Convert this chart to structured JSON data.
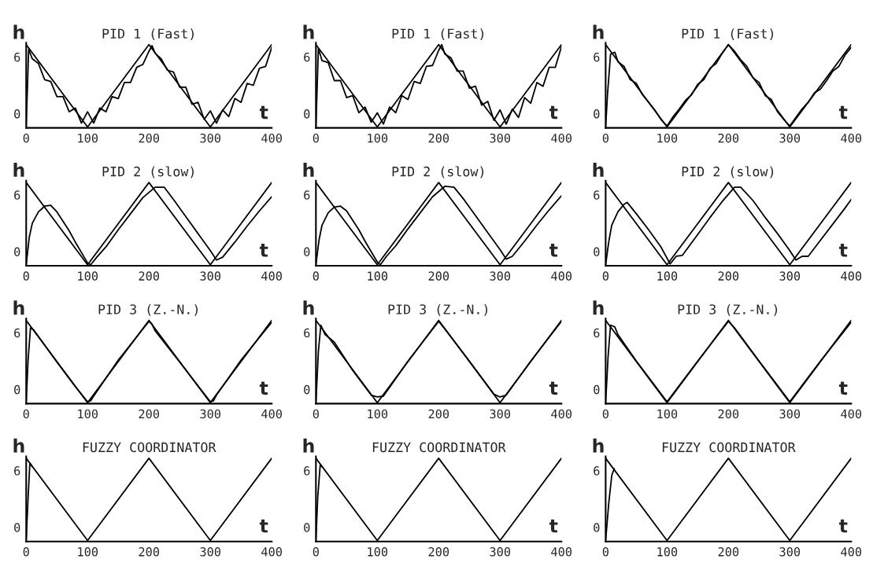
{
  "chart_data": [
    {
      "type": "line",
      "title": "PID 1 (Fast)",
      "xlabel": "t",
      "ylabel": "h",
      "xlim": [
        0,
        400
      ],
      "xticks": [
        0,
        100,
        200,
        300,
        400
      ],
      "ylim": [
        -1.5,
        7.5
      ],
      "yticks": [
        0,
        6
      ],
      "grid": false,
      "series": [
        {
          "color": "#000000",
          "x": [
            0,
            100,
            200,
            300,
            400
          ],
          "values": [
            7.3,
            -1.4,
            7.3,
            -1.4,
            7.3
          ]
        },
        {
          "color": "#000000",
          "x": [
            0,
            4,
            10,
            20,
            30,
            40,
            50,
            60,
            70,
            80,
            90,
            100,
            110,
            120,
            130,
            140,
            150,
            160,
            170,
            180,
            190,
            200,
            205,
            210,
            220,
            230,
            240,
            250,
            260,
            270,
            280,
            290,
            300,
            310,
            320,
            330,
            340,
            350,
            360,
            370,
            380,
            390,
            400
          ],
          "values": [
            -1.4,
            6.8,
            5.8,
            5.3,
            3.6,
            3.4,
            1.8,
            1.8,
            0.2,
            0.6,
            -1.0,
            0.2,
            -1.0,
            0.6,
            0.2,
            1.8,
            1.6,
            3.3,
            3.3,
            4.9,
            5.2,
            6.6,
            7.2,
            6.4,
            5.8,
            4.6,
            4.4,
            2.8,
            2.8,
            1.0,
            1.2,
            -0.6,
            0.3,
            -1.0,
            0.4,
            -0.3,
            1.6,
            1.2,
            3.2,
            3.0,
            4.8,
            5.0,
            7.0
          ]
        }
      ]
    },
    {
      "type": "line",
      "title": "PID 1 (Fast)",
      "xlabel": "t",
      "ylabel": "h",
      "xlim": [
        0,
        400
      ],
      "xticks": [
        0,
        100,
        200,
        300,
        400
      ],
      "ylim": [
        -1.5,
        7.5
      ],
      "yticks": [
        0,
        6
      ],
      "grid": false,
      "series": [
        {
          "color": "#000000",
          "x": [
            0,
            100,
            200,
            300,
            400
          ],
          "values": [
            7.3,
            -1.4,
            7.3,
            -1.4,
            7.3
          ]
        },
        {
          "color": "#000000",
          "x": [
            0,
            4,
            10,
            20,
            30,
            40,
            50,
            60,
            70,
            80,
            90,
            100,
            110,
            120,
            130,
            140,
            150,
            160,
            170,
            180,
            190,
            200,
            205,
            210,
            220,
            230,
            240,
            250,
            260,
            270,
            280,
            290,
            300,
            310,
            320,
            330,
            340,
            350,
            360,
            370,
            380,
            390,
            400
          ],
          "values": [
            -1.4,
            6.9,
            5.6,
            5.4,
            3.5,
            3.5,
            1.7,
            1.9,
            0.1,
            0.7,
            -0.9,
            0.1,
            -1.1,
            0.7,
            0.1,
            1.9,
            1.5,
            3.4,
            3.2,
            5.0,
            5.1,
            6.7,
            7.3,
            6.3,
            5.9,
            4.5,
            4.5,
            2.7,
            2.9,
            0.9,
            1.3,
            -0.7,
            0.4,
            -1.1,
            0.5,
            -0.4,
            1.7,
            1.1,
            3.3,
            2.9,
            4.9,
            4.9,
            7.1
          ]
        }
      ]
    },
    {
      "type": "line",
      "title": "PID 1 (Fast)",
      "xlabel": "t",
      "ylabel": "h",
      "xlim": [
        0,
        400
      ],
      "xticks": [
        0,
        100,
        200,
        300,
        400
      ],
      "ylim": [
        -1.5,
        7.5
      ],
      "yticks": [
        0,
        6
      ],
      "grid": false,
      "series": [
        {
          "color": "#000000",
          "x": [
            0,
            100,
            200,
            300,
            400
          ],
          "values": [
            7.3,
            -1.4,
            7.3,
            -1.4,
            7.3
          ]
        },
        {
          "color": "#000000",
          "x": [
            0,
            3,
            8,
            15,
            20,
            30,
            40,
            50,
            60,
            70,
            80,
            90,
            100,
            110,
            120,
            130,
            140,
            150,
            160,
            170,
            180,
            190,
            200,
            210,
            220,
            230,
            240,
            250,
            260,
            270,
            280,
            290,
            300,
            310,
            320,
            330,
            340,
            350,
            360,
            370,
            380,
            390,
            400
          ],
          "values": [
            -1.4,
            2.0,
            6.3,
            6.5,
            5.5,
            5.0,
            3.6,
            3.2,
            2.0,
            1.2,
            0.4,
            -0.6,
            -1.3,
            -0.3,
            0.5,
            1.4,
            2.0,
            3.1,
            3.6,
            4.8,
            5.3,
            6.4,
            7.3,
            6.6,
            5.7,
            5.0,
            3.8,
            3.3,
            1.9,
            1.5,
            0.2,
            -0.6,
            -1.3,
            -0.4,
            0.5,
            1.2,
            2.2,
            2.6,
            3.5,
            4.5,
            5.0,
            6.2,
            7.0
          ]
        }
      ]
    },
    {
      "type": "line",
      "title": "PID 2 (slow)",
      "xlabel": "t",
      "ylabel": "h",
      "xlim": [
        0,
        400
      ],
      "xticks": [
        0,
        100,
        200,
        300,
        400
      ],
      "ylim": [
        -1.5,
        7.5
      ],
      "yticks": [
        0,
        6
      ],
      "grid": false,
      "series": [
        {
          "color": "#000000",
          "x": [
            0,
            100,
            200,
            300,
            400
          ],
          "values": [
            7.3,
            -1.4,
            7.3,
            -1.4,
            7.3
          ]
        },
        {
          "color": "#000000",
          "x": [
            0,
            5,
            10,
            20,
            30,
            40,
            50,
            60,
            70,
            80,
            90,
            100,
            105,
            115,
            130,
            150,
            170,
            190,
            210,
            225,
            240,
            260,
            280,
            300,
            310,
            320,
            340,
            360,
            380,
            400
          ],
          "values": [
            -1.4,
            1.5,
            3.0,
            4.2,
            4.8,
            4.9,
            4.2,
            3.2,
            2.2,
            1.0,
            -0.1,
            -1.2,
            -1.4,
            -0.6,
            0.5,
            2.3,
            4.0,
            5.7,
            6.8,
            6.8,
            5.5,
            3.7,
            1.9,
            0.1,
            -0.9,
            -0.6,
            1.0,
            2.7,
            4.3,
            5.8
          ]
        }
      ]
    },
    {
      "type": "line",
      "title": "PID 2 (slow)",
      "xlabel": "t",
      "ylabel": "h",
      "xlim": [
        0,
        400
      ],
      "xticks": [
        0,
        100,
        200,
        300,
        400
      ],
      "ylim": [
        -1.5,
        7.5
      ],
      "yticks": [
        0,
        6
      ],
      "grid": false,
      "series": [
        {
          "color": "#000000",
          "x": [
            0,
            100,
            200,
            300,
            400
          ],
          "values": [
            7.3,
            -1.4,
            7.3,
            -1.4,
            7.3
          ]
        },
        {
          "color": "#000000",
          "x": [
            0,
            5,
            10,
            20,
            30,
            40,
            50,
            60,
            70,
            80,
            90,
            100,
            105,
            115,
            130,
            150,
            170,
            190,
            210,
            225,
            240,
            260,
            280,
            300,
            310,
            320,
            340,
            360,
            380,
            400
          ],
          "values": [
            -1.4,
            1.2,
            2.8,
            4.1,
            4.7,
            4.8,
            4.3,
            3.3,
            2.3,
            1.1,
            0.0,
            -1.1,
            -1.4,
            -0.5,
            0.6,
            2.4,
            4.1,
            5.8,
            6.9,
            6.8,
            5.6,
            3.8,
            2.0,
            0.2,
            -0.8,
            -0.5,
            1.1,
            2.8,
            4.4,
            5.9
          ]
        }
      ]
    },
    {
      "type": "line",
      "title": "PID 2 (slow)",
      "xlabel": "t",
      "ylabel": "h",
      "xlim": [
        0,
        400
      ],
      "xticks": [
        0,
        100,
        200,
        300,
        400
      ],
      "ylim": [
        -1.5,
        7.5
      ],
      "yticks": [
        0,
        6
      ],
      "grid": false,
      "series": [
        {
          "color": "#000000",
          "x": [
            0,
            100,
            200,
            300,
            400
          ],
          "values": [
            7.3,
            -1.4,
            7.3,
            -1.4,
            7.3
          ]
        },
        {
          "color": "#000000",
          "x": [
            0,
            5,
            10,
            20,
            30,
            35,
            50,
            70,
            90,
            105,
            115,
            125,
            150,
            170,
            190,
            210,
            220,
            240,
            260,
            280,
            300,
            310,
            320,
            330,
            350,
            370,
            390,
            400
          ],
          "values": [
            -1.4,
            1.0,
            2.8,
            4.2,
            5.0,
            5.2,
            4.0,
            2.3,
            0.5,
            -1.3,
            -0.5,
            -0.4,
            1.8,
            3.6,
            5.3,
            6.8,
            6.8,
            5.4,
            3.6,
            1.9,
            0.1,
            -0.9,
            -0.5,
            -0.5,
            1.2,
            2.9,
            4.6,
            5.5
          ]
        }
      ]
    },
    {
      "type": "line",
      "title": "PID 3 (Z.-N.)",
      "xlabel": "t",
      "ylabel": "h",
      "xlim": [
        0,
        400
      ],
      "xticks": [
        0,
        100,
        200,
        300,
        400
      ],
      "ylim": [
        -1.5,
        7.5
      ],
      "yticks": [
        0,
        6
      ],
      "grid": false,
      "series": [
        {
          "color": "#000000",
          "x": [
            0,
            100,
            200,
            300,
            400
          ],
          "values": [
            7.3,
            -1.4,
            7.3,
            -1.4,
            7.3
          ]
        },
        {
          "color": "#000000",
          "x": [
            0,
            3,
            7,
            12,
            20,
            50,
            80,
            100,
            105,
            110,
            150,
            200,
            205,
            210,
            250,
            300,
            305,
            310,
            350,
            400
          ],
          "values": [
            -1.4,
            3.0,
            6.5,
            6.3,
            5.6,
            2.9,
            0.3,
            -1.3,
            -1.2,
            -0.7,
            3.1,
            7.2,
            6.9,
            6.2,
            2.9,
            -1.3,
            -1.2,
            -0.6,
            3.1,
            7.1
          ]
        }
      ]
    },
    {
      "type": "line",
      "title": "PID 3 (Z.-N.)",
      "xlabel": "t",
      "ylabel": "h",
      "xlim": [
        0,
        400
      ],
      "xticks": [
        0,
        100,
        200,
        300,
        400
      ],
      "ylim": [
        -1.5,
        7.5
      ],
      "yticks": [
        0,
        6
      ],
      "grid": false,
      "series": [
        {
          "color": "#000000",
          "x": [
            0,
            100,
            200,
            300,
            400
          ],
          "values": [
            7.3,
            -1.4,
            7.3,
            -1.4,
            7.3
          ]
        },
        {
          "color": "#000000",
          "x": [
            0,
            4,
            8,
            15,
            30,
            60,
            90,
            100,
            110,
            150,
            200,
            210,
            250,
            290,
            300,
            310,
            350,
            400
          ],
          "values": [
            -1.4,
            4.0,
            6.8,
            5.8,
            5.0,
            2.0,
            -0.6,
            -0.8,
            -0.7,
            3.0,
            7.2,
            6.4,
            3.0,
            -0.5,
            -0.8,
            -0.6,
            3.0,
            7.2
          ]
        }
      ]
    },
    {
      "type": "line",
      "title": "PID 3 (Z.-N.)",
      "xlabel": "t",
      "ylabel": "h",
      "xlim": [
        0,
        400
      ],
      "xticks": [
        0,
        100,
        200,
        300,
        400
      ],
      "ylim": [
        -1.5,
        7.5
      ],
      "yticks": [
        0,
        6
      ],
      "grid": false,
      "series": [
        {
          "color": "#000000",
          "x": [
            0,
            100,
            200,
            300,
            400
          ],
          "values": [
            7.3,
            -1.4,
            7.3,
            -1.4,
            7.3
          ]
        },
        {
          "color": "#000000",
          "x": [
            0,
            4,
            8,
            15,
            20,
            50,
            100,
            150,
            200,
            210,
            250,
            300,
            350,
            400
          ],
          "values": [
            -1.4,
            3.5,
            6.8,
            6.6,
            5.8,
            3.0,
            -1.3,
            3.0,
            7.2,
            6.5,
            3.0,
            -1.3,
            3.0,
            7.1
          ]
        }
      ]
    },
    {
      "type": "line",
      "title": "FUZZY COORDINATOR",
      "xlabel": "t",
      "ylabel": "h",
      "xlim": [
        0,
        400
      ],
      "xticks": [
        0,
        100,
        200,
        300,
        400
      ],
      "ylim": [
        -1.5,
        7.5
      ],
      "yticks": [
        0,
        6
      ],
      "grid": false,
      "series": [
        {
          "color": "#000000",
          "x": [
            0,
            100,
            200,
            300,
            400
          ],
          "values": [
            7.3,
            -1.4,
            7.3,
            -1.4,
            7.3
          ]
        },
        {
          "color": "#000000",
          "x": [
            0,
            3,
            6,
            10
          ],
          "values": [
            -1.4,
            3.0,
            6.8,
            6.4
          ]
        }
      ]
    },
    {
      "type": "line",
      "title": "FUZZY COORDINATOR",
      "xlabel": "t",
      "ylabel": "h",
      "xlim": [
        0,
        400
      ],
      "xticks": [
        0,
        100,
        200,
        300,
        400
      ],
      "ylim": [
        -1.5,
        7.5
      ],
      "yticks": [
        0,
        6
      ],
      "grid": false,
      "series": [
        {
          "color": "#000000",
          "x": [
            0,
            100,
            200,
            300,
            400
          ],
          "values": [
            7.3,
            -1.4,
            7.3,
            -1.4,
            7.3
          ]
        },
        {
          "color": "#000000",
          "x": [
            0,
            3,
            7,
            10
          ],
          "values": [
            -1.4,
            3.2,
            6.6,
            6.4
          ]
        }
      ]
    },
    {
      "type": "line",
      "title": "FUZZY COORDINATOR",
      "xlabel": "t",
      "ylabel": "h",
      "xlim": [
        0,
        400
      ],
      "xticks": [
        0,
        100,
        200,
        300,
        400
      ],
      "ylim": [
        -1.5,
        7.5
      ],
      "yticks": [
        0,
        6
      ],
      "grid": false,
      "series": [
        {
          "color": "#000000",
          "x": [
            0,
            100,
            200,
            300,
            400
          ],
          "values": [
            7.3,
            -1.4,
            7.3,
            -1.4,
            7.3
          ]
        },
        {
          "color": "#000000",
          "x": [
            0,
            5,
            10,
            14
          ],
          "values": [
            -1.4,
            2.5,
            5.5,
            6.2
          ]
        }
      ]
    }
  ]
}
